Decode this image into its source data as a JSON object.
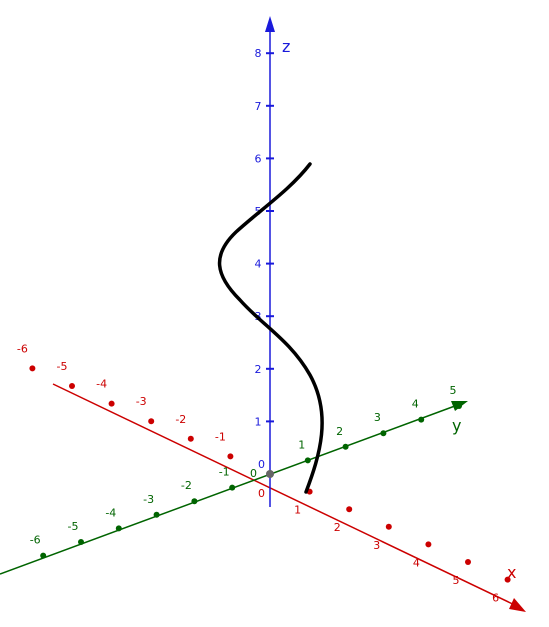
{
  "chart_data": {
    "type": "line",
    "projection": "3d-axes",
    "title": "",
    "axes": {
      "x": {
        "label": "x",
        "color": "#cc0000",
        "ticks": [
          "-6",
          "-5",
          "-4",
          "-3",
          "-2",
          "-1",
          "1",
          "2",
          "3",
          "4",
          "5",
          "6"
        ]
      },
      "y": {
        "label": "y",
        "color": "#006400",
        "ticks": [
          "-6",
          "-5",
          "-4",
          "-3",
          "-2",
          "-1",
          "1",
          "2",
          "3",
          "4",
          "5"
        ]
      },
      "z": {
        "label": "z",
        "color": "#1a1adb",
        "ticks": [
          "1",
          "2",
          "3",
          "4",
          "5",
          "6",
          "7",
          "8"
        ]
      }
    },
    "origin_labels": [
      "0",
      "0",
      "0"
    ],
    "curve": {
      "color": "#000000",
      "description_points_xyz": [
        [
          1.0,
          0.0,
          0.0
        ],
        [
          1.0,
          0.0,
          6.0
        ]
      ],
      "equation": ""
    },
    "grid": false,
    "legend": "none"
  }
}
